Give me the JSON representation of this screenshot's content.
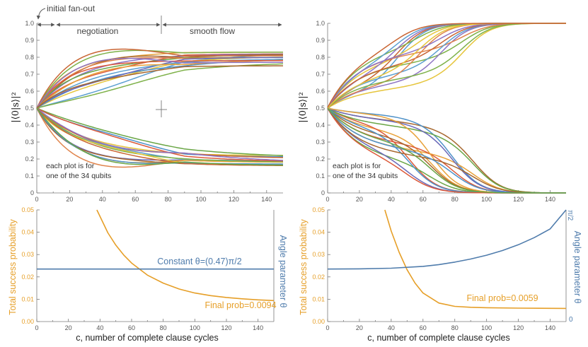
{
  "colors": {
    "orange": "#e69f28",
    "blue": "#4f7cac",
    "axis": "#7a7a7a",
    "palette": [
      "#5c9fd0",
      "#e8a23a",
      "#7eb149",
      "#dc5a3a",
      "#8e74c3",
      "#a7682f",
      "#e6c53c",
      "#4e91c8",
      "#c96533",
      "#6aa646",
      "#e0844c",
      "#6a69b9"
    ]
  },
  "annotations": {
    "initial": "initial fan-out",
    "negotiation": "negotiation",
    "smooth": "smooth flow"
  },
  "chart_data": [
    {
      "id": "top-left",
      "type": "line",
      "ylabel": "|⟨0|s⟩|²",
      "xlim": [
        0,
        150
      ],
      "ylim": [
        0,
        1
      ],
      "xticks": [
        "0",
        "20",
        "40",
        "60",
        "80",
        "100",
        "120",
        "140"
      ],
      "yticks": [
        "0",
        "0.1",
        "0.2",
        "0.3",
        "0.4",
        "0.5",
        "0.6",
        "0.7",
        "0.8",
        "0.9",
        "1.0"
      ],
      "note_line1": "each plot is for",
      "note_line2": "one of the 34 qubits",
      "series_count": 34,
      "start_value": 0.5,
      "final_values_upper": [
        0.84,
        0.83,
        0.83,
        0.82,
        0.82,
        0.82,
        0.81,
        0.81,
        0.81,
        0.8,
        0.8,
        0.8,
        0.79,
        0.79,
        0.78,
        0.78,
        0.77,
        0.75
      ],
      "final_values_lower": [
        0.22,
        0.21,
        0.2,
        0.2,
        0.19,
        0.19,
        0.19,
        0.18,
        0.18,
        0.18,
        0.17,
        0.17,
        0.17,
        0.17,
        0.16,
        0.16
      ]
    },
    {
      "id": "top-right",
      "type": "line",
      "ylabel": "|⟨0|s⟩|²",
      "xlim": [
        0,
        150
      ],
      "ylim": [
        0,
        1
      ],
      "xticks": [
        "0",
        "20",
        "40",
        "60",
        "80",
        "100",
        "120",
        "140"
      ],
      "yticks": [
        "0",
        "0.1",
        "0.2",
        "0.3",
        "0.4",
        "0.5",
        "0.6",
        "0.7",
        "0.8",
        "0.9",
        "1.0"
      ],
      "note_line1": "each plot is for",
      "note_line2": "one of the 34 qubits",
      "series_count": 34,
      "start_value": 0.5,
      "final_value_upper": 1.0,
      "final_value_lower": 0.0
    },
    {
      "id": "bottom-left",
      "type": "line",
      "xlabel": "c, number of complete clause cycles",
      "ylabel_left": "Total success probability",
      "ylabel_right": "Angle parameter θ",
      "xlim": [
        0,
        150
      ],
      "ylim": [
        0,
        0.05
      ],
      "xticks": [
        "0",
        "20",
        "40",
        "60",
        "80",
        "100",
        "120",
        "140"
      ],
      "yticks": [
        "0.00",
        "0.01",
        "0.02",
        "0.03",
        "0.04",
        "0.05"
      ],
      "series": [
        {
          "name": "Total success probability",
          "color": "orange",
          "x": [
            38,
            45,
            50,
            55,
            60,
            70,
            80,
            90,
            100,
            110,
            120,
            130,
            140,
            150
          ],
          "y": [
            0.05,
            0.0397,
            0.0342,
            0.0298,
            0.0262,
            0.0208,
            0.0172,
            0.0146,
            0.0128,
            0.0116,
            0.0108,
            0.0102,
            0.0097,
            0.0094
          ]
        },
        {
          "name": "Angle parameter θ",
          "color": "blue",
          "x": [
            0,
            150
          ],
          "y": [
            0.0235,
            0.0235
          ]
        }
      ],
      "constant_label": "Constant θ=(0.47)π/2",
      "final_label": "Final prob=0.0094"
    },
    {
      "id": "bottom-right",
      "type": "line",
      "xlabel": "c, number of complete clause cycles",
      "ylabel_left": "Total success probability",
      "ylabel_right": "Angle parameter θ",
      "right_top_tick": "π/2",
      "right_bottom_tick": "0",
      "xlim": [
        0,
        150
      ],
      "ylim": [
        0,
        0.05
      ],
      "xticks": [
        "0",
        "20",
        "40",
        "60",
        "80",
        "100",
        "120",
        "140"
      ],
      "yticks": [
        "0.00",
        "0.01",
        "0.02",
        "0.03",
        "0.04",
        "0.05"
      ],
      "series": [
        {
          "name": "Total success probability",
          "color": "orange",
          "x": [
            36,
            40,
            45,
            50,
            55,
            60,
            70,
            80,
            90,
            100,
            120,
            150
          ],
          "y": [
            0.05,
            0.0405,
            0.031,
            0.0232,
            0.0172,
            0.0128,
            0.0083,
            0.0068,
            0.0064,
            0.0062,
            0.006,
            0.0059
          ]
        },
        {
          "name": "Angle parameter θ",
          "color": "blue",
          "x": [
            0,
            20,
            40,
            60,
            70,
            80,
            90,
            100,
            110,
            120,
            130,
            140,
            150
          ],
          "y": [
            0.0235,
            0.0236,
            0.0239,
            0.0247,
            0.0255,
            0.0266,
            0.028,
            0.0297,
            0.0318,
            0.0344,
            0.0376,
            0.0415,
            0.05
          ]
        }
      ],
      "final_label": "Final prob=0.0059"
    }
  ]
}
